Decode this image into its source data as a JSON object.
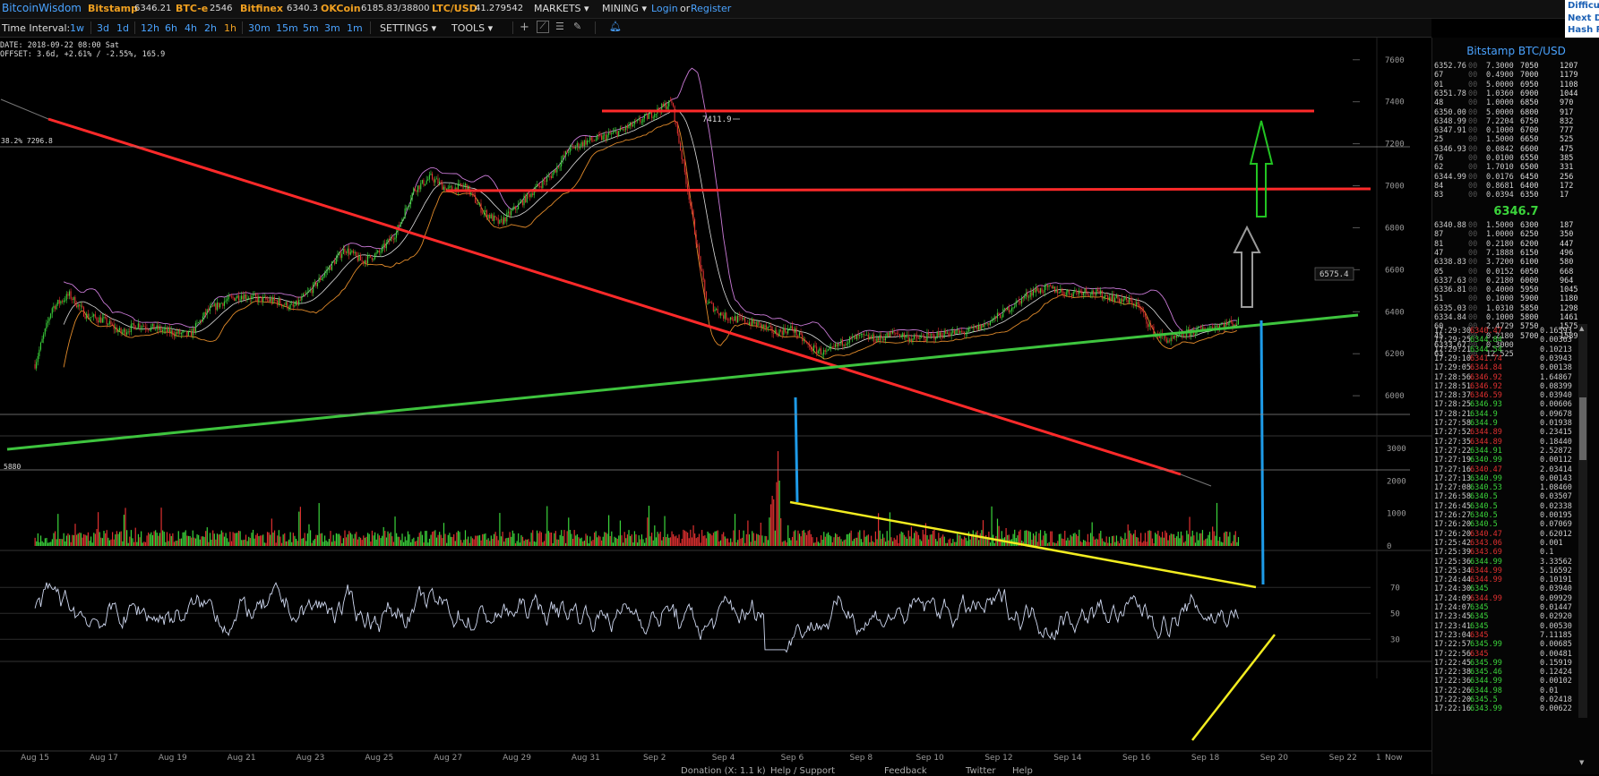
{
  "topbar": {
    "brand": "BitcoinWisdom",
    "exchanges": [
      {
        "name": "Bitstamp",
        "value": "6346.21"
      },
      {
        "name": "BTC-e",
        "value": "2546"
      },
      {
        "name": "Bitfinex",
        "value": "6340.3"
      },
      {
        "name": "OKCoin",
        "value": "6185.83/38800"
      },
      {
        "name": "LTC/USD",
        "value": "41.279542"
      }
    ],
    "markets_label": "MARKETS",
    "mining_label": "MINING",
    "login_label": "Login",
    "or_label": "or",
    "register_label": "Register",
    "corner_lines": [
      "Difficu",
      "Next D",
      "Hash R"
    ]
  },
  "toolbar": {
    "time_interval_label": "Time Interval:",
    "intervals": [
      "1w",
      "3d",
      "1d",
      "12h",
      "6h",
      "4h",
      "2h",
      "1h",
      "30m",
      "15m",
      "5m",
      "3m",
      "1m"
    ],
    "active_interval": "1h",
    "settings_label": "SETTINGS",
    "tools_label": "TOOLS"
  },
  "chart_info": {
    "date_line": "DATE: 2018-09-22 08:00 Sat",
    "offset_line": "OFFSET: 3.6d, +2.61% / -2.55%, 165.9"
  },
  "chart_data": [
    {
      "type": "line",
      "name": "price",
      "y_ticks": [
        7600,
        7400,
        7200,
        7000,
        6800,
        6600,
        6400,
        6200,
        6000
      ],
      "ylim": [
        5830,
        7680
      ],
      "x_ticks": [
        "Aug 15",
        "Aug 17",
        "Aug 19",
        "Aug 21",
        "Aug 23",
        "Aug 25",
        "Aug 27",
        "Aug 29",
        "Aug 31",
        "Sep 2",
        "Sep 4",
        "Sep 6",
        "Sep 8",
        "Sep 10",
        "Sep 12",
        "Sep 14",
        "Sep 16",
        "Sep 18",
        "Sep 20",
        "Sep 22"
      ],
      "x_range_days": [
        -0.6,
        38.8
      ],
      "series": [
        {
          "x_days": [
            0,
            0.5,
            1,
            1.5,
            2,
            2.5,
            3,
            3.5,
            4,
            4.5,
            5,
            5.5,
            6,
            6.5,
            7,
            7.5,
            8,
            8.5,
            9,
            9.5,
            10,
            10.5,
            11,
            11.5,
            12,
            12.5,
            13,
            13.5,
            14,
            14.5,
            15,
            15.5,
            16,
            16.5,
            17,
            17.5,
            18,
            18.5,
            19,
            19.5,
            20,
            20.5,
            21,
            21.5,
            22,
            22.5,
            23,
            23.5,
            24,
            24.5,
            25,
            25.5,
            26,
            26.5,
            27,
            27.5,
            28,
            28.5,
            29,
            29.5,
            30,
            30.5,
            31,
            31.5,
            32,
            32.5,
            33,
            33.5,
            34,
            34.5,
            35
          ],
          "values": [
            6150,
            6420,
            6480,
            6380,
            6360,
            6300,
            6340,
            6320,
            6300,
            6290,
            6400,
            6450,
            6480,
            6460,
            6450,
            6420,
            6500,
            6600,
            6700,
            6640,
            6680,
            6780,
            6980,
            7040,
            6980,
            7000,
            6880,
            6820,
            6900,
            6980,
            7050,
            7170,
            7210,
            7230,
            7260,
            7300,
            7350,
            7400,
            6950,
            6450,
            6380,
            6360,
            6340,
            6300,
            6320,
            6230,
            6200,
            6260,
            6280,
            6270,
            6300,
            6270,
            6280,
            6300,
            6300,
            6330,
            6380,
            6440,
            6500,
            6510,
            6490,
            6500,
            6480,
            6460,
            6440,
            6300,
            6260,
            6300,
            6320,
            6340,
            6350
          ]
        }
      ],
      "annotations": [
        "7411.9",
        "6575.4",
        "38.2% 7296.8",
        "5880",
        "6346.7"
      ]
    },
    {
      "type": "bar",
      "name": "volume",
      "y_ticks": [
        3000,
        2000,
        1000,
        0
      ],
      "ylim": [
        0,
        3300
      ]
    },
    {
      "type": "line",
      "name": "oscillator",
      "y_ticks": [
        70,
        50,
        30
      ],
      "ylim": [
        15,
        95
      ]
    }
  ],
  "orderbook": {
    "title": "Bitstamp BTC/USD",
    "mid_price": "6346.7",
    "asks": [
      [
        "6352.76",
        "00",
        "7.3000",
        "7050",
        "1207"
      ],
      [
        "67",
        "00",
        "0.4900",
        "7000",
        "1179"
      ],
      [
        "01",
        "00",
        "5.0000",
        "6950",
        "1108"
      ],
      [
        "6351.78",
        "00",
        "1.0360",
        "6900",
        "1044"
      ],
      [
        "48",
        "00",
        "1.0000",
        "6850",
        "970"
      ],
      [
        "6350.00",
        "00",
        "5.0000",
        "6800",
        "917"
      ],
      [
        "6348.99",
        "00",
        "7.2204",
        "6750",
        "832"
      ],
      [
        "6347.91",
        "00",
        "0.1000",
        "6700",
        "777"
      ],
      [
        "25",
        "00",
        "1.5000",
        "6650",
        "525"
      ],
      [
        "6346.93",
        "00",
        "0.0842",
        "6600",
        "475"
      ],
      [
        "76",
        "00",
        "0.0100",
        "6550",
        "385"
      ],
      [
        "62",
        "00",
        "1.7010",
        "6500",
        "331"
      ],
      [
        "6344.99",
        "00",
        "0.0176",
        "6450",
        "256"
      ],
      [
        "84",
        "00",
        "0.8681",
        "6400",
        "172"
      ],
      [
        "83",
        "00",
        "0.0394",
        "6350",
        "17"
      ]
    ],
    "bids": [
      [
        "6340.88",
        "00",
        "1.5000",
        "6300",
        "187"
      ],
      [
        "87",
        "00",
        "1.0000",
        "6250",
        "350"
      ],
      [
        "81",
        "00",
        "0.2180",
        "6200",
        "447"
      ],
      [
        "47",
        "00",
        "7.1888",
        "6150",
        "496"
      ],
      [
        "6338.83",
        "00",
        "3.7200",
        "6100",
        "580"
      ],
      [
        "05",
        "00",
        "0.0152",
        "6050",
        "668"
      ],
      [
        "6337.63",
        "00",
        "0.2180",
        "6000",
        "964"
      ],
      [
        "6336.81",
        "00",
        "0.4000",
        "5950",
        "1045"
      ],
      [
        "51",
        "00",
        "0.1000",
        "5900",
        "1180"
      ],
      [
        "6335.03",
        "00",
        "1.0310",
        "5850",
        "1298"
      ],
      [
        "6334.84",
        "00",
        "0.1000",
        "5800",
        "1461"
      ],
      [
        "60",
        "00",
        "2.4729",
        "5750",
        "1575"
      ],
      [
        "45",
        "00",
        "0.2180",
        "5700",
        "1589"
      ],
      [
        "6333.67",
        "00",
        "0.3000",
        "",
        ""
      ],
      [
        "63",
        "00",
        "12.525",
        "",
        ""
      ]
    ]
  },
  "trades": [
    [
      "17:29:30",
      "6340.47",
      "0.16593",
      "s"
    ],
    [
      "17:29:25",
      "6344.84",
      "0.00363",
      "b"
    ],
    [
      "17:29:21",
      "6344.54",
      "0.10213",
      "b"
    ],
    [
      "17:29:10",
      "6341.74",
      "0.03943",
      "s"
    ],
    [
      "17:29:05",
      "6344.84",
      "0.00138",
      "s"
    ],
    [
      "17:28:56",
      "6346.92",
      "1.64867",
      "s"
    ],
    [
      "17:28:51",
      "6346.92",
      "0.08399",
      "s"
    ],
    [
      "17:28:37",
      "6346.59",
      "0.03940",
      "s"
    ],
    [
      "17:28:25",
      "6346.93",
      "0.00606",
      "b"
    ],
    [
      "17:28:21",
      "6344.9",
      "0.09678",
      "b"
    ],
    [
      "17:27:58",
      "6344.9",
      "0.01938",
      "b"
    ],
    [
      "17:27:52",
      "6344.89",
      "0.23415",
      "s"
    ],
    [
      "17:27:35",
      "6344.89",
      "0.18440",
      "s"
    ],
    [
      "17:27:22",
      "6344.91",
      "2.52872",
      "b"
    ],
    [
      "17:27:19",
      "6340.99",
      "0.00112",
      "b"
    ],
    [
      "17:27:16",
      "6340.47",
      "2.03414",
      "s"
    ],
    [
      "17:27:13",
      "6340.99",
      "0.00143",
      "b"
    ],
    [
      "17:27:08",
      "6340.53",
      "1.08460",
      "b"
    ],
    [
      "17:26:58",
      "6340.5",
      "0.03507",
      "b"
    ],
    [
      "17:26:45",
      "6340.5",
      "0.02338",
      "b"
    ],
    [
      "17:26:27",
      "6340.5",
      "0.00195",
      "b"
    ],
    [
      "17:26:20",
      "6340.5",
      "0.07069",
      "b"
    ],
    [
      "17:26:20",
      "6340.47",
      "0.62012",
      "s"
    ],
    [
      "17:25:42",
      "6343.06",
      "0.001",
      "s"
    ],
    [
      "17:25:39",
      "6343.69",
      "0.1",
      "s"
    ],
    [
      "17:25:36",
      "6344.99",
      "3.33562",
      "b"
    ],
    [
      "17:25:34",
      "6344.99",
      "5.16592",
      "s"
    ],
    [
      "17:24:44",
      "6344.99",
      "0.10191",
      "s"
    ],
    [
      "17:24:30",
      "6345",
      "0.03940",
      "b"
    ],
    [
      "17:24:09",
      "6344.99",
      "0.09929",
      "s"
    ],
    [
      "17:24:07",
      "6345",
      "0.01447",
      "b"
    ],
    [
      "17:23:45",
      "6345",
      "0.02920",
      "b"
    ],
    [
      "17:23:41",
      "6345",
      "0.00530",
      "b"
    ],
    [
      "17:23:04",
      "6345",
      "7.11185",
      "s"
    ],
    [
      "17:22:57",
      "6345.99",
      "0.00685",
      "b"
    ],
    [
      "17:22:56",
      "6345",
      "0.00481",
      "s"
    ],
    [
      "17:22:45",
      "6345.99",
      "0.15919",
      "b"
    ],
    [
      "17:22:38",
      "6345.46",
      "0.12424",
      "b"
    ],
    [
      "17:22:36",
      "6344.99",
      "0.00102",
      "b"
    ],
    [
      "17:22:26",
      "6344.98",
      "0.01",
      "b"
    ],
    [
      "17:22:20",
      "6345.5",
      "0.02418",
      "b"
    ],
    [
      "17:22:16",
      "6343.99",
      "0.00622",
      "b"
    ]
  ],
  "bottom_links": [
    "Donation (X: 1.1 k)",
    "Help / Support",
    "Feedback",
    "Twitter",
    "Help"
  ],
  "colors": {
    "background": "#000000",
    "accent": "#4aa3ff",
    "active_interval": "#f0a020",
    "up_candle": "#3bd43b",
    "down_candle": "#e03030",
    "trend_red": "#ff2a2a",
    "trend_green": "#3ec43e",
    "trend_yellow": "#f2ec20",
    "trend_blue": "#1e9be8",
    "oscillator": "#cfd8f0",
    "band_upper": "#c97ad6",
    "band_lower": "#e08a2a",
    "ma_line": "#dddddd"
  }
}
